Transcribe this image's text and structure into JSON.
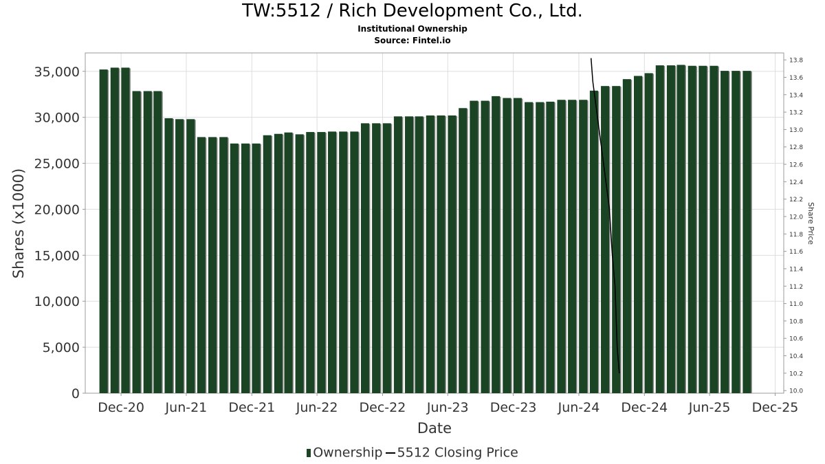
{
  "colors": {
    "bar": "#1a4424",
    "bar_shadow": "#8c8c8c",
    "price_line": "#000000",
    "grid": "#dddddd"
  },
  "chart_data": {
    "type": "bar",
    "title": "TW:5512 / Rich Development Co., Ltd.",
    "subtitle": "Institutional Ownership",
    "source": "Source: Fintel.io",
    "xlabel": "Date",
    "ylabel": "Shares (x1000)",
    "y2label": "Share Price",
    "ylim": [
      0,
      37000
    ],
    "y2lim": [
      9.97,
      13.88
    ],
    "xlim": [
      "2020-08-23",
      "2025-12-25"
    ],
    "y_ticks": [
      "0",
      "5,000",
      "10,000",
      "15,000",
      "20,000",
      "25,000",
      "30,000",
      "35,000"
    ],
    "y_tick_values": [
      0,
      5000,
      10000,
      15000,
      20000,
      25000,
      30000,
      35000
    ],
    "y2_ticks": [
      "10.0",
      "10.2",
      "10.4",
      "10.6",
      "10.8",
      "11.0",
      "11.2",
      "11.4",
      "11.6",
      "11.8",
      "12.0",
      "12.2",
      "12.4",
      "12.6",
      "12.8",
      "13.0",
      "13.2",
      "13.4",
      "13.6",
      "13.8"
    ],
    "y2_tick_values": [
      10.0,
      10.2,
      10.4,
      10.6,
      10.8,
      11.0,
      11.2,
      11.4,
      11.6,
      11.8,
      12.0,
      12.2,
      12.4,
      12.6,
      12.8,
      13.0,
      13.2,
      13.4,
      13.6,
      13.8
    ],
    "x_ticks": [
      "Dec-20",
      "Jun-21",
      "Dec-21",
      "Jun-22",
      "Dec-22",
      "Jun-23",
      "Dec-23",
      "Jun-24",
      "Dec-24",
      "Jun-25",
      "Dec-25"
    ],
    "x_tick_dates": [
      "2020-12-01",
      "2021-06-01",
      "2021-12-01",
      "2022-06-01",
      "2022-12-01",
      "2023-06-01",
      "2023-12-01",
      "2024-06-01",
      "2024-12-01",
      "2025-06-01",
      "2025-12-01"
    ],
    "grid": true,
    "legend_position": "bottom-center",
    "series": [
      {
        "name": "Ownership",
        "dates": [
          "2020-10-15",
          "2020-11-15",
          "2020-12-15",
          "2021-01-15",
          "2021-02-15",
          "2021-03-15",
          "2021-04-15",
          "2021-05-15",
          "2021-06-15",
          "2021-07-15",
          "2021-08-15",
          "2021-09-15",
          "2021-10-15",
          "2021-11-15",
          "2021-12-15",
          "2022-01-15",
          "2022-02-15",
          "2022-03-15",
          "2022-04-15",
          "2022-05-15",
          "2022-06-15",
          "2022-07-15",
          "2022-08-15",
          "2022-09-15",
          "2022-10-15",
          "2022-11-15",
          "2022-12-15",
          "2023-01-15",
          "2023-02-15",
          "2023-03-15",
          "2023-04-15",
          "2023-05-15",
          "2023-06-15",
          "2023-07-15",
          "2023-08-15",
          "2023-09-15",
          "2023-10-15",
          "2023-11-15",
          "2023-12-15",
          "2024-01-15",
          "2024-02-15",
          "2024-03-15",
          "2024-04-15",
          "2024-05-15",
          "2024-06-15",
          "2024-07-15",
          "2024-08-15",
          "2024-09-15",
          "2024-10-15",
          "2024-11-15",
          "2024-12-15",
          "2025-01-15",
          "2025-02-15",
          "2025-03-15",
          "2025-04-15",
          "2025-05-15",
          "2025-06-15",
          "2025-07-15",
          "2025-08-15",
          "2025-09-15"
        ],
        "values": [
          35200,
          35400,
          35400,
          32850,
          32850,
          32850,
          29900,
          29800,
          29800,
          27850,
          27850,
          27850,
          27150,
          27150,
          27150,
          28050,
          28200,
          28350,
          28150,
          28400,
          28400,
          28450,
          28450,
          28450,
          29350,
          29350,
          29350,
          30100,
          30100,
          30100,
          30200,
          30200,
          30200,
          31000,
          31800,
          31800,
          32300,
          32100,
          32100,
          31650,
          31650,
          31700,
          31900,
          31900,
          31900,
          32900,
          33400,
          33400,
          34150,
          34500,
          34800,
          35650,
          35650,
          35700,
          35600,
          35600,
          35600,
          35050,
          35050,
          35050
        ]
      },
      {
        "name": "5512 Closing Price",
        "points": [
          [
            "2024-07-05",
            13.82
          ],
          [
            "2024-07-10",
            13.55
          ],
          [
            "2024-08-25",
            12.1
          ],
          [
            "2024-09-02",
            11.58
          ],
          [
            "2024-09-10",
            11.2
          ],
          [
            "2024-09-16",
            10.5
          ],
          [
            "2024-09-22",
            10.2
          ]
        ]
      }
    ]
  }
}
